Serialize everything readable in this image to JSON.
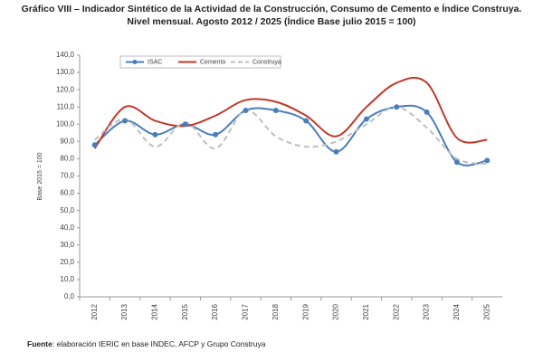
{
  "chart_data": {
    "type": "line",
    "title": "Gráfico VIII – Indicador Sintético de la Actividad de la Construcción, Consumo de Cemento e Índice Construya.",
    "subtitle": "Nivel mensual. Agosto 2012 / 2025 (Índice Base julio 2015 = 100)",
    "y_label": "Base 2015 = 100",
    "categories": [
      "2012",
      "2013",
      "2014",
      "2015",
      "2016",
      "2017",
      "2018",
      "2019",
      "2020",
      "2021",
      "2022",
      "2023",
      "2024",
      "2025"
    ],
    "series": [
      {
        "name": "ISAC",
        "color": "#4a7ebb",
        "markers": true,
        "dashed": false,
        "values": [
          88,
          102,
          94,
          100,
          94,
          108,
          108,
          102,
          84,
          103,
          110,
          107,
          78,
          79
        ]
      },
      {
        "name": "Cemento",
        "color": "#c0392b",
        "markers": false,
        "dashed": false,
        "values": [
          86,
          110,
          102,
          99,
          105,
          114,
          113,
          105,
          93,
          110,
          124,
          124,
          92,
          91
        ]
      },
      {
        "name": "Construya",
        "color": "#bfbfbf",
        "markers": false,
        "dashed": true,
        "values": [
          91,
          103,
          87,
          101,
          86,
          108,
          93,
          87,
          90,
          100,
          110,
          98,
          80,
          77
        ]
      }
    ],
    "ylim": [
      0,
      140
    ],
    "yticks": [
      {
        "value": 0,
        "label": "0,0"
      },
      {
        "value": 10,
        "label": "10,0"
      },
      {
        "value": 20,
        "label": "20,0"
      },
      {
        "value": 30,
        "label": "30,0"
      },
      {
        "value": 40,
        "label": "40,0"
      },
      {
        "value": 50,
        "label": "50,0"
      },
      {
        "value": 60,
        "label": "60,0"
      },
      {
        "value": 70,
        "label": "70,0"
      },
      {
        "value": 80,
        "label": "80,0"
      },
      {
        "value": 90,
        "label": "90,0"
      },
      {
        "value": 100,
        "label": "100,0"
      },
      {
        "value": 110,
        "label": "110,0"
      },
      {
        "value": 120,
        "label": "120,0"
      },
      {
        "value": 130,
        "label": "130,0"
      },
      {
        "value": 140,
        "label": "140,0"
      }
    ],
    "grid": false,
    "legend": "top-left",
    "source_label": "Fuente",
    "source_text": ": elaboración IERIC en base INDEC, AFCP y Grupo Construya"
  }
}
